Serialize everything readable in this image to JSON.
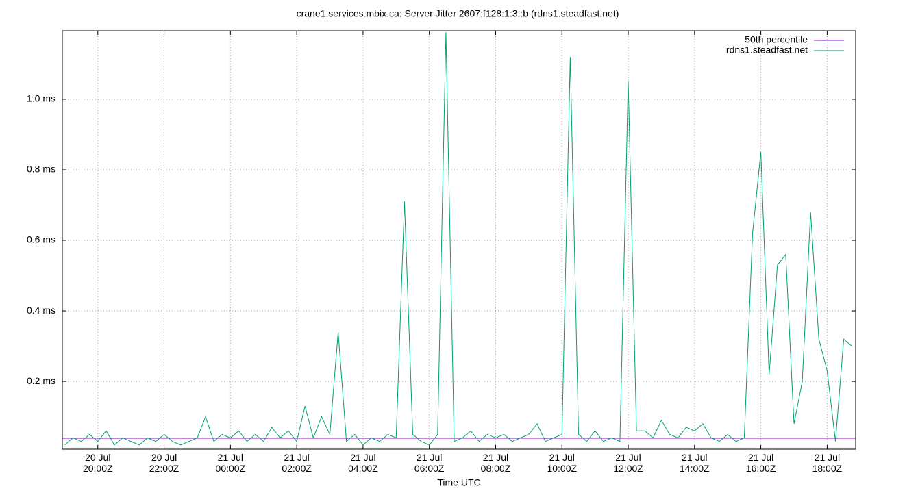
{
  "chart_data": {
    "type": "line",
    "title": "crane1.services.mbix.ca: Server Jitter 2607:f128:1:3::b (rdns1.steadfast.net)",
    "x_label": "Time UTC",
    "xlim": [
      18.93,
      42.86
    ],
    "xticks": [
      {
        "value": 20,
        "label": "20 Jul\n20:00Z"
      },
      {
        "value": 22,
        "label": "20 Jul\n22:00Z"
      },
      {
        "value": 24,
        "label": "21 Jul\n00:00Z"
      },
      {
        "value": 26,
        "label": "21 Jul\n02:00Z"
      },
      {
        "value": 28,
        "label": "21 Jul\n04:00Z"
      },
      {
        "value": 30,
        "label": "21 Jul\n06:00Z"
      },
      {
        "value": 32,
        "label": "21 Jul\n08:00Z"
      },
      {
        "value": 34,
        "label": "21 Jul\n10:00Z"
      },
      {
        "value": 36,
        "label": "21 Jul\n12:00Z"
      },
      {
        "value": 38,
        "label": "21 Jul\n14:00Z"
      },
      {
        "value": 40,
        "label": "21 Jul\n16:00Z"
      },
      {
        "value": 42,
        "label": "21 Jul\n18:00Z"
      }
    ],
    "ylim": [
      0.008,
      1.194
    ],
    "yticks": [
      {
        "value": 0.2,
        "label": "0.2 ms"
      },
      {
        "value": 0.4,
        "label": "0.4 ms"
      },
      {
        "value": 0.6,
        "label": "0.6 ms"
      },
      {
        "value": 0.8,
        "label": "0.8 ms"
      },
      {
        "value": 1.0,
        "label": "1.0 ms"
      }
    ],
    "grid": true,
    "legend": "top-right",
    "series": [
      {
        "name": "50th percentile",
        "color": "#9400d3",
        "x": [
          18.93,
          42.86
        ],
        "values": [
          0.039,
          0.039
        ]
      },
      {
        "name": "rdns1.steadfast.net",
        "color": "#009e73",
        "x": [
          19,
          19.25,
          19.5,
          19.75,
          20,
          20.25,
          20.5,
          20.75,
          21,
          21.25,
          21.5,
          21.75,
          22,
          22.25,
          22.5,
          22.75,
          23,
          23.25,
          23.5,
          23.75,
          24,
          24.25,
          24.5,
          24.75,
          25,
          25.25,
          25.5,
          25.75,
          26,
          26.25,
          26.5,
          26.75,
          27,
          27.25,
          27.5,
          27.75,
          28,
          28.25,
          28.5,
          28.75,
          29,
          29.25,
          29.5,
          29.75,
          30,
          30.25,
          30.5,
          30.75,
          31,
          31.25,
          31.5,
          31.75,
          32,
          32.25,
          32.5,
          32.75,
          33,
          33.25,
          33.5,
          33.75,
          34,
          34.25,
          34.5,
          34.75,
          35,
          35.25,
          35.5,
          35.75,
          36,
          36.25,
          36.5,
          36.75,
          37,
          37.25,
          37.5,
          37.75,
          38,
          38.25,
          38.5,
          38.75,
          39,
          39.25,
          39.5,
          39.75,
          40,
          40.25,
          40.5,
          40.75,
          41,
          41.25,
          41.5,
          41.75,
          42,
          42.25,
          42.5,
          42.75
        ],
        "values": [
          0.02,
          0.04,
          0.03,
          0.05,
          0.03,
          0.06,
          0.02,
          0.04,
          0.03,
          0.02,
          0.04,
          0.03,
          0.05,
          0.03,
          0.02,
          0.03,
          0.04,
          0.1,
          0.03,
          0.05,
          0.04,
          0.06,
          0.03,
          0.05,
          0.03,
          0.07,
          0.04,
          0.06,
          0.03,
          0.13,
          0.04,
          0.1,
          0.05,
          0.34,
          0.03,
          0.05,
          0.02,
          0.04,
          0.03,
          0.05,
          0.04,
          0.71,
          0.05,
          0.03,
          0.02,
          0.05,
          1.19,
          0.03,
          0.04,
          0.06,
          0.03,
          0.05,
          0.04,
          0.05,
          0.03,
          0.04,
          0.05,
          0.08,
          0.03,
          0.04,
          0.05,
          1.12,
          0.05,
          0.03,
          0.06,
          0.03,
          0.04,
          0.03,
          1.05,
          0.06,
          0.06,
          0.04,
          0.09,
          0.05,
          0.04,
          0.07,
          0.06,
          0.08,
          0.04,
          0.03,
          0.05,
          0.03,
          0.04,
          0.62,
          0.85,
          0.22,
          0.53,
          0.56,
          0.08,
          0.2,
          0.68,
          0.32,
          0.23,
          0.03,
          0.32,
          0.3
        ]
      }
    ]
  }
}
